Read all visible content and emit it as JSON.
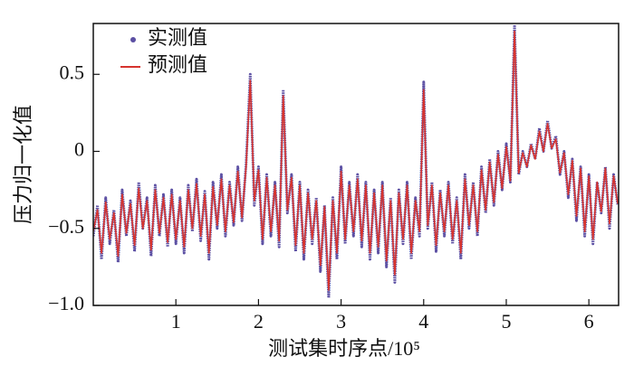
{
  "chart_data": {
    "type": "line",
    "xlabel": "测试集时序点/10⁵",
    "ylabel": "压力归一化值",
    "x": [
      0,
      0.05,
      0.1,
      0.15,
      0.2,
      0.25,
      0.3,
      0.35,
      0.4,
      0.45,
      0.5,
      0.55,
      0.6,
      0.65,
      0.7,
      0.75,
      0.8,
      0.85,
      0.9,
      0.95,
      1,
      1.05,
      1.1,
      1.15,
      1.2,
      1.25,
      1.3,
      1.35,
      1.4,
      1.45,
      1.5,
      1.55,
      1.6,
      1.65,
      1.7,
      1.75,
      1.8,
      1.85,
      1.9,
      1.95,
      2,
      2.05,
      2.1,
      2.15,
      2.2,
      2.25,
      2.3,
      2.35,
      2.4,
      2.45,
      2.5,
      2.55,
      2.6,
      2.65,
      2.7,
      2.75,
      2.8,
      2.85,
      2.9,
      2.95,
      3,
      3.05,
      3.1,
      3.15,
      3.2,
      3.25,
      3.3,
      3.35,
      3.4,
      3.45,
      3.5,
      3.55,
      3.6,
      3.65,
      3.7,
      3.75,
      3.8,
      3.85,
      3.9,
      3.95,
      4,
      4.05,
      4.1,
      4.15,
      4.2,
      4.25,
      4.3,
      4.35,
      4.4,
      4.45,
      4.5,
      4.55,
      4.6,
      4.65,
      4.7,
      4.75,
      4.8,
      4.85,
      4.9,
      4.95,
      5,
      5.05,
      5.1,
      5.15,
      5.2,
      5.25,
      5.3,
      5.35,
      5.4,
      5.45,
      5.5,
      5.55,
      5.6,
      5.65,
      5.7,
      5.75,
      5.8,
      5.85,
      5.9,
      5.95,
      6,
      6.05,
      6.1,
      6.15,
      6.2,
      6.25,
      6.3,
      6.35
    ],
    "series": [
      {
        "name": "实测值",
        "color": "#5b4fa3",
        "marker": "dot",
        "values": [
          -0.55,
          -0.35,
          -0.7,
          -0.3,
          -0.6,
          -0.38,
          -0.72,
          -0.25,
          -0.55,
          -0.32,
          -0.65,
          -0.2,
          -0.5,
          -0.3,
          -0.68,
          -0.22,
          -0.55,
          -0.28,
          -0.62,
          -0.25,
          -0.6,
          -0.3,
          -0.66,
          -0.22,
          -0.52,
          -0.18,
          -0.58,
          -0.26,
          -0.7,
          -0.2,
          -0.5,
          -0.15,
          -0.55,
          -0.2,
          -0.48,
          -0.1,
          -0.45,
          -0.08,
          0.5,
          -0.35,
          -0.1,
          -0.6,
          -0.15,
          -0.55,
          -0.2,
          -0.62,
          0.4,
          -0.4,
          -0.15,
          -0.65,
          -0.2,
          -0.7,
          -0.25,
          -0.6,
          -0.3,
          -0.78,
          -0.35,
          -0.95,
          -0.3,
          -0.7,
          -0.1,
          -0.6,
          -0.2,
          -0.55,
          -0.15,
          -0.62,
          -0.2,
          -0.7,
          -0.25,
          -0.66,
          -0.2,
          -0.75,
          -0.3,
          -0.85,
          -0.25,
          -0.6,
          -0.2,
          -0.7,
          -0.3,
          -0.55,
          0.45,
          -0.5,
          -0.2,
          -0.65,
          -0.25,
          -0.55,
          -0.2,
          -0.6,
          -0.3,
          -0.7,
          -0.15,
          -0.5,
          -0.2,
          -0.55,
          -0.1,
          -0.4,
          -0.05,
          -0.35,
          0,
          -0.25,
          0.05,
          -0.2,
          0.82,
          -0.15,
          0,
          -0.1,
          0.05,
          -0.05,
          0.15,
          0,
          0.2,
          0.02,
          0.1,
          -0.15,
          0,
          -0.3,
          -0.05,
          -0.45,
          -0.1,
          -0.55,
          -0.15,
          -0.6,
          -0.2,
          -0.4,
          -0.1,
          -0.5,
          -0.15,
          -0.35
        ]
      },
      {
        "name": "预测值",
        "color": "#d6332e",
        "marker": "line",
        "values": [
          -0.52,
          -0.38,
          -0.66,
          -0.33,
          -0.57,
          -0.4,
          -0.68,
          -0.28,
          -0.53,
          -0.34,
          -0.61,
          -0.24,
          -0.5,
          -0.32,
          -0.64,
          -0.25,
          -0.53,
          -0.3,
          -0.59,
          -0.28,
          -0.57,
          -0.32,
          -0.62,
          -0.25,
          -0.5,
          -0.21,
          -0.55,
          -0.28,
          -0.66,
          -0.23,
          -0.48,
          -0.18,
          -0.52,
          -0.22,
          -0.46,
          -0.13,
          -0.43,
          -0.1,
          0.46,
          -0.32,
          -0.12,
          -0.57,
          -0.17,
          -0.52,
          -0.22,
          -0.58,
          0.36,
          -0.38,
          -0.17,
          -0.61,
          -0.22,
          -0.66,
          -0.27,
          -0.57,
          -0.32,
          -0.74,
          -0.36,
          -0.9,
          -0.32,
          -0.66,
          -0.13,
          -0.57,
          -0.22,
          -0.52,
          -0.18,
          -0.58,
          -0.22,
          -0.66,
          -0.27,
          -0.62,
          -0.22,
          -0.71,
          -0.32,
          -0.8,
          -0.27,
          -0.57,
          -0.22,
          -0.66,
          -0.32,
          -0.52,
          0.4,
          -0.48,
          -0.22,
          -0.61,
          -0.27,
          -0.52,
          -0.22,
          -0.57,
          -0.32,
          -0.66,
          -0.18,
          -0.48,
          -0.22,
          -0.52,
          -0.12,
          -0.38,
          -0.07,
          -0.33,
          -0.02,
          -0.24,
          0.03,
          -0.19,
          0.78,
          -0.14,
          -0.01,
          -0.1,
          0.04,
          -0.05,
          0.13,
          0,
          0.18,
          0.02,
          0.08,
          -0.14,
          -0.01,
          -0.28,
          -0.06,
          -0.42,
          -0.11,
          -0.52,
          -0.16,
          -0.57,
          -0.2,
          -0.39,
          -0.11,
          -0.47,
          -0.16,
          -0.34
        ]
      }
    ],
    "xlim": [
      0,
      6.36
    ],
    "ylim": [
      -1.0,
      0.83
    ],
    "xticks": [
      1,
      2,
      3,
      4,
      5,
      6
    ],
    "yticks": [
      {
        "value": -1.0,
        "label": "−1.0"
      },
      {
        "value": -0.5,
        "label": "−0.5"
      },
      0,
      0.5
    ],
    "legend": "upper left",
    "grid": false
  }
}
